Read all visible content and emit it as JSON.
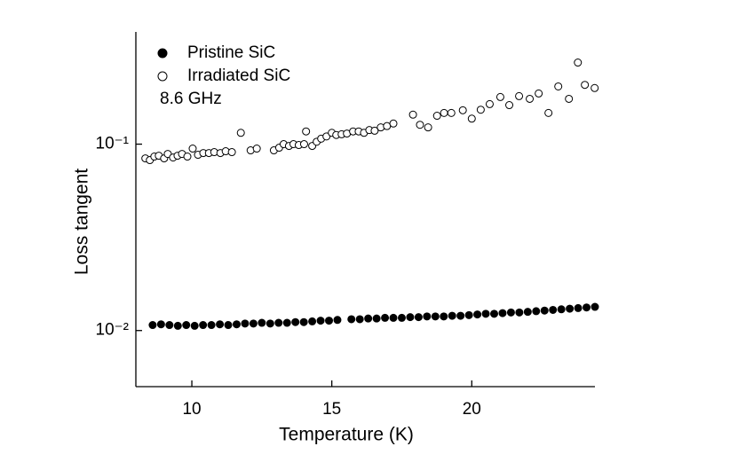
{
  "chart_data": {
    "type": "scatter",
    "x_label": "Temperature (K)",
    "y_label": "Loss tangent",
    "annotation": "8.6 GHz",
    "xlim": [
      8,
      24.4
    ],
    "xticks": [
      10,
      15,
      20
    ],
    "ylim": [
      0.005,
      0.4
    ],
    "y_scale": "log",
    "yticks": [
      {
        "value": 0.01,
        "label": "10⁻²"
      },
      {
        "value": 0.1,
        "label": "10⁻¹"
      }
    ],
    "legend": "upper-left",
    "series": [
      {
        "name": "Pristine SiC",
        "color": "#000000",
        "filled": true,
        "x": [
          8.6,
          8.9,
          9.2,
          9.5,
          9.8,
          10.1,
          10.4,
          10.7,
          11.0,
          11.3,
          11.6,
          11.9,
          12.2,
          12.5,
          12.8,
          13.1,
          13.4,
          13.7,
          14.0,
          14.3,
          14.6,
          14.9,
          15.2,
          15.7,
          16.0,
          16.3,
          16.6,
          16.9,
          17.2,
          17.5,
          17.8,
          18.1,
          18.4,
          18.7,
          19.0,
          19.3,
          19.6,
          19.9,
          20.2,
          20.5,
          20.8,
          21.1,
          21.4,
          21.7,
          22.0,
          22.3,
          22.6,
          22.9,
          23.2,
          23.5,
          23.8,
          24.1,
          24.4
        ],
        "values": [
          0.0107,
          0.0108,
          0.0107,
          0.0106,
          0.0107,
          0.0106,
          0.0107,
          0.0107,
          0.0108,
          0.0107,
          0.0108,
          0.0109,
          0.0109,
          0.011,
          0.0109,
          0.011,
          0.011,
          0.0111,
          0.0111,
          0.0112,
          0.0113,
          0.0113,
          0.0114,
          0.0115,
          0.0115,
          0.0116,
          0.0116,
          0.0117,
          0.0117,
          0.0117,
          0.0118,
          0.0118,
          0.0119,
          0.0119,
          0.0119,
          0.012,
          0.012,
          0.0121,
          0.0122,
          0.0123,
          0.0123,
          0.0124,
          0.0125,
          0.0125,
          0.0126,
          0.0127,
          0.0128,
          0.0129,
          0.013,
          0.0131,
          0.0132,
          0.0133,
          0.0134
        ]
      },
      {
        "name": "Irradiated SiC",
        "color": "#000000",
        "filled": false,
        "x": [
          8.34,
          8.5,
          8.66,
          8.82,
          9.01,
          9.14,
          9.33,
          9.49,
          9.65,
          9.84,
          10.03,
          10.22,
          10.41,
          10.61,
          10.8,
          11.02,
          11.21,
          11.43,
          11.75,
          12.1,
          12.32,
          12.93,
          13.12,
          13.28,
          13.47,
          13.63,
          13.82,
          14.01,
          14.08,
          14.3,
          14.46,
          14.62,
          14.81,
          15.0,
          15.16,
          15.35,
          15.54,
          15.76,
          15.96,
          16.15,
          16.34,
          16.53,
          16.75,
          16.97,
          17.2,
          17.9,
          18.15,
          18.44,
          18.76,
          19.01,
          19.27,
          19.68,
          20.0,
          20.32,
          20.64,
          21.02,
          21.34,
          21.69,
          22.07,
          22.39,
          22.74,
          23.09,
          23.47,
          23.79,
          24.04,
          24.39
        ],
        "values": [
          0.0839,
          0.0821,
          0.0858,
          0.0867,
          0.0839,
          0.0886,
          0.0848,
          0.0867,
          0.0886,
          0.0858,
          0.0947,
          0.0877,
          0.0896,
          0.0896,
          0.0906,
          0.0896,
          0.0916,
          0.0906,
          0.115,
          0.0926,
          0.0947,
          0.0926,
          0.0957,
          0.1,
          0.0978,
          0.1,
          0.0989,
          0.1,
          0.117,
          0.0978,
          0.103,
          0.107,
          0.11,
          0.115,
          0.112,
          0.113,
          0.114,
          0.117,
          0.117,
          0.115,
          0.119,
          0.118,
          0.123,
          0.125,
          0.129,
          0.144,
          0.127,
          0.123,
          0.142,
          0.147,
          0.147,
          0.152,
          0.137,
          0.153,
          0.164,
          0.179,
          0.162,
          0.181,
          0.175,
          0.187,
          0.147,
          0.204,
          0.175,
          0.274,
          0.208,
          0.2
        ]
      }
    ]
  }
}
